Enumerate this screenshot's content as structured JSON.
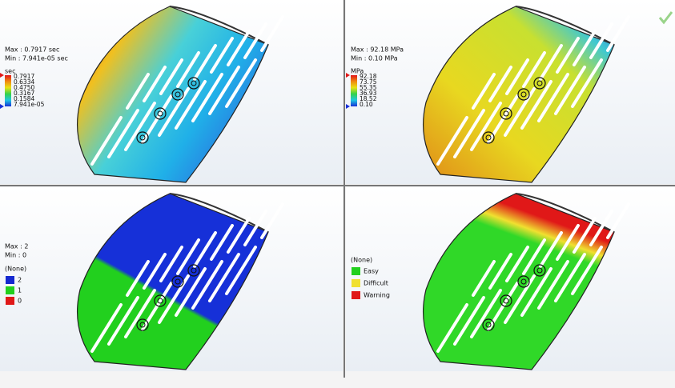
{
  "panels": [
    {
      "max": "Max : 0.7917 sec",
      "min": "Min : 7.941e-05 sec",
      "unit": "sec",
      "legend": [
        "0.7917",
        "0.6334",
        "0.4750",
        "0.3167",
        "0.1584",
        "7.941e-05"
      ]
    },
    {
      "max": "Max : 92.18 MPa",
      "min": "Min : 0.10 MPa",
      "unit": "MPa",
      "legend": [
        "92.18",
        "73.75",
        "55.35",
        "36.93",
        "18.52",
        "0.10"
      ]
    },
    {
      "max": "Max : 2",
      "min": "Min : 0",
      "unit": "(None)",
      "legend": [
        "2",
        "1",
        "0"
      ]
    },
    {
      "unit": "(None)",
      "legend": [
        "Easy",
        "Difficult",
        "Warning"
      ]
    }
  ]
}
